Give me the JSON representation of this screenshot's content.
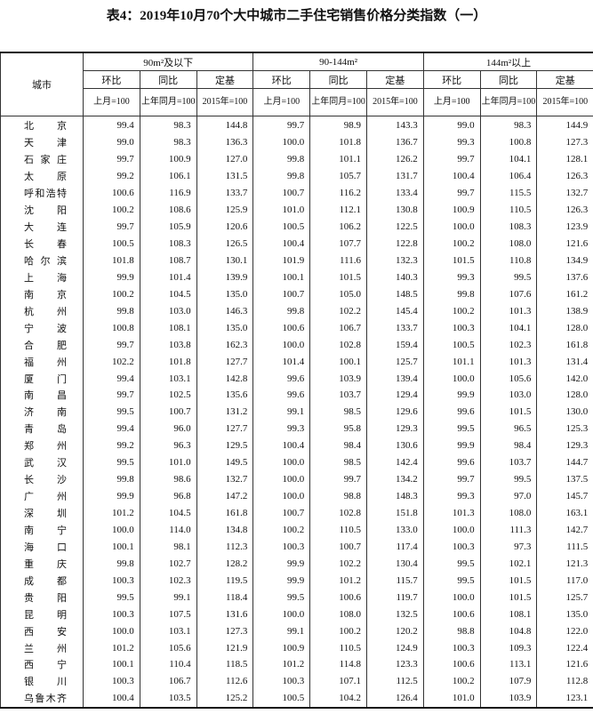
{
  "header": {
    "title": "表4：2019年10月70个大中城市二手住宅销售价格分类指数（一）"
  },
  "table": {
    "city_header": "城市",
    "groups": [
      "90m²及以下",
      "90-144m²",
      "144m²以上"
    ],
    "sub_headers": [
      "环比",
      "同比",
      "定基"
    ],
    "base_headers": [
      "上月=100",
      "上年同月=100",
      "2015年=100"
    ],
    "rows": [
      [
        "北京",
        "99.4",
        "98.3",
        "144.8",
        "99.7",
        "98.9",
        "143.3",
        "99.0",
        "98.3",
        "144.9"
      ],
      [
        "天津",
        "99.0",
        "98.3",
        "136.3",
        "100.0",
        "101.8",
        "136.7",
        "99.3",
        "100.8",
        "127.3"
      ],
      [
        "石家庄",
        "99.7",
        "100.9",
        "127.0",
        "99.8",
        "101.1",
        "126.2",
        "99.7",
        "104.1",
        "128.1"
      ],
      [
        "太原",
        "99.2",
        "106.1",
        "131.5",
        "99.8",
        "105.7",
        "131.7",
        "100.4",
        "106.4",
        "126.3"
      ],
      [
        "呼和浩特",
        "100.6",
        "116.9",
        "133.7",
        "100.7",
        "116.2",
        "133.4",
        "99.7",
        "115.5",
        "132.7"
      ],
      [
        "沈阳",
        "100.2",
        "108.6",
        "125.9",
        "101.0",
        "112.1",
        "130.8",
        "100.9",
        "110.5",
        "126.3"
      ],
      [
        "大连",
        "99.7",
        "105.9",
        "120.6",
        "100.5",
        "106.2",
        "122.5",
        "100.0",
        "108.3",
        "123.9"
      ],
      [
        "长春",
        "100.5",
        "108.3",
        "126.5",
        "100.4",
        "107.7",
        "122.8",
        "100.2",
        "108.0",
        "121.6"
      ],
      [
        "哈尔滨",
        "101.8",
        "108.7",
        "130.1",
        "101.9",
        "111.6",
        "132.3",
        "101.5",
        "110.8",
        "134.9"
      ],
      [
        "上海",
        "99.9",
        "101.4",
        "139.9",
        "100.1",
        "101.5",
        "140.3",
        "99.3",
        "99.5",
        "137.6"
      ],
      [
        "南京",
        "100.2",
        "104.5",
        "135.0",
        "100.7",
        "105.0",
        "148.5",
        "99.8",
        "107.6",
        "161.2"
      ],
      [
        "杭州",
        "99.8",
        "103.0",
        "146.3",
        "99.8",
        "102.2",
        "145.4",
        "100.2",
        "101.3",
        "138.9"
      ],
      [
        "宁波",
        "100.8",
        "108.1",
        "135.0",
        "100.6",
        "106.7",
        "133.7",
        "100.3",
        "104.1",
        "128.0"
      ],
      [
        "合肥",
        "99.7",
        "103.8",
        "162.3",
        "100.0",
        "102.8",
        "159.4",
        "100.5",
        "102.3",
        "161.8"
      ],
      [
        "福州",
        "102.2",
        "101.8",
        "127.7",
        "101.4",
        "100.1",
        "125.7",
        "101.1",
        "101.3",
        "131.4"
      ],
      [
        "厦门",
        "99.4",
        "103.1",
        "142.8",
        "99.6",
        "103.9",
        "139.4",
        "100.0",
        "105.6",
        "142.0"
      ],
      [
        "南昌",
        "99.7",
        "102.5",
        "135.6",
        "99.6",
        "103.7",
        "129.4",
        "99.9",
        "103.0",
        "128.0"
      ],
      [
        "济南",
        "99.5",
        "100.7",
        "131.2",
        "99.1",
        "98.5",
        "129.6",
        "99.6",
        "101.5",
        "130.0"
      ],
      [
        "青岛",
        "99.4",
        "96.0",
        "127.7",
        "99.3",
        "95.8",
        "129.3",
        "99.5",
        "96.5",
        "125.3"
      ],
      [
        "郑州",
        "99.2",
        "96.3",
        "129.5",
        "100.4",
        "98.4",
        "130.6",
        "99.9",
        "98.4",
        "129.3"
      ],
      [
        "武汉",
        "99.5",
        "101.0",
        "149.5",
        "100.0",
        "98.5",
        "142.4",
        "99.6",
        "103.7",
        "144.7"
      ],
      [
        "长沙",
        "99.8",
        "98.6",
        "132.7",
        "100.0",
        "99.7",
        "134.2",
        "99.7",
        "99.5",
        "137.5"
      ],
      [
        "广州",
        "99.9",
        "96.8",
        "147.2",
        "100.0",
        "98.8",
        "148.3",
        "99.3",
        "97.0",
        "145.7"
      ],
      [
        "深圳",
        "101.2",
        "104.5",
        "161.8",
        "100.7",
        "102.8",
        "151.8",
        "101.3",
        "108.0",
        "163.1"
      ],
      [
        "南宁",
        "100.0",
        "114.0",
        "134.8",
        "100.2",
        "110.5",
        "133.0",
        "100.0",
        "111.3",
        "142.7"
      ],
      [
        "海口",
        "100.1",
        "98.1",
        "112.3",
        "100.3",
        "100.7",
        "117.4",
        "100.3",
        "97.3",
        "111.5"
      ],
      [
        "重庆",
        "99.8",
        "102.7",
        "128.2",
        "99.9",
        "102.2",
        "130.4",
        "99.5",
        "102.1",
        "121.3"
      ],
      [
        "成都",
        "100.3",
        "102.3",
        "119.5",
        "99.9",
        "101.2",
        "115.7",
        "99.5",
        "101.5",
        "117.0"
      ],
      [
        "贵阳",
        "99.5",
        "99.1",
        "118.4",
        "99.5",
        "100.6",
        "119.7",
        "100.0",
        "101.5",
        "125.7"
      ],
      [
        "昆明",
        "100.3",
        "107.5",
        "131.6",
        "100.0",
        "108.0",
        "132.5",
        "100.6",
        "108.1",
        "135.0"
      ],
      [
        "西安",
        "100.0",
        "103.1",
        "127.3",
        "99.1",
        "100.2",
        "120.2",
        "98.8",
        "104.8",
        "122.0"
      ],
      [
        "兰州",
        "101.2",
        "105.6",
        "121.9",
        "100.9",
        "110.5",
        "124.9",
        "100.3",
        "109.3",
        "122.4"
      ],
      [
        "西宁",
        "100.1",
        "110.4",
        "118.5",
        "101.2",
        "114.8",
        "123.3",
        "100.6",
        "113.1",
        "121.6"
      ],
      [
        "银川",
        "100.3",
        "106.7",
        "112.6",
        "100.3",
        "107.1",
        "112.5",
        "100.2",
        "107.9",
        "112.8"
      ],
      [
        "乌鲁木齐",
        "100.4",
        "103.5",
        "125.2",
        "100.5",
        "104.2",
        "126.4",
        "101.0",
        "103.9",
        "123.1"
      ]
    ]
  }
}
